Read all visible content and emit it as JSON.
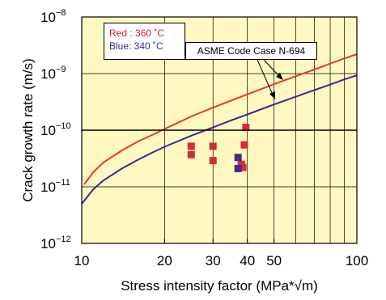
{
  "chart_data": {
    "type": "line",
    "title": "",
    "xlabel": "Stress intensity factor (MPa*√m)",
    "ylabel": "Crack growth rate (m/s)",
    "xscale": "log",
    "yscale": "log",
    "xlim": [
      10,
      100
    ],
    "ylim": [
      1e-12,
      1e-08
    ],
    "x_tick_values": [
      10,
      20,
      30,
      40,
      50,
      100
    ],
    "x_tick_labels": [
      "10",
      "20",
      "30",
      "40",
      "50",
      "100"
    ],
    "y_ticks": [
      {
        "value": 1e-12,
        "exp": "−12"
      },
      {
        "value": 1e-11,
        "exp": "−11"
      },
      {
        "value": 1e-10,
        "exp": "−10"
      },
      {
        "value": 1e-09,
        "exp": "−9"
      },
      {
        "value": 1e-08,
        "exp": "−8"
      }
    ],
    "y_tick_base": "10",
    "grid": true,
    "background_color": "#fff8c0",
    "legend": {
      "placement": "top-left",
      "entries": [
        {
          "text": "Red : 360 ˚C",
          "color": "#d42020"
        },
        {
          "text": "Blue: 340 ˚C",
          "color": "#3a2a8a"
        }
      ]
    },
    "annotation": "ASME Code Case N-694",
    "series": [
      {
        "color": "#e8372c",
        "kind": "line",
        "points": [
          [
            10.2,
            1.1e-11
          ],
          [
            11,
            1.8e-11
          ],
          [
            12,
            2.7e-11
          ],
          [
            14,
            4.4e-11
          ],
          [
            16,
            6.3e-11
          ],
          [
            18,
            8.2e-11
          ],
          [
            20,
            1.05e-10
          ],
          [
            25,
            1.75e-10
          ],
          [
            30,
            2.5e-10
          ],
          [
            35,
            3.35e-10
          ],
          [
            40,
            4.3e-10
          ],
          [
            50,
            6.5e-10
          ],
          [
            60,
            9e-10
          ],
          [
            70,
            1.18e-09
          ],
          [
            80,
            1.5e-09
          ],
          [
            90,
            1.85e-09
          ],
          [
            100,
            2.2e-09
          ]
        ]
      },
      {
        "color": "#3a2a8a",
        "kind": "line",
        "points": [
          [
            10,
            5e-12
          ],
          [
            11,
            9e-12
          ],
          [
            12,
            1.3e-11
          ],
          [
            14,
            2.1e-11
          ],
          [
            16,
            3e-11
          ],
          [
            18,
            4e-11
          ],
          [
            20,
            5.1e-11
          ],
          [
            25,
            8e-11
          ],
          [
            30,
            1.12e-10
          ],
          [
            35,
            1.5e-10
          ],
          [
            40,
            1.9e-10
          ],
          [
            50,
            2.85e-10
          ],
          [
            60,
            3.9e-10
          ],
          [
            70,
            5.1e-10
          ],
          [
            80,
            6.4e-10
          ],
          [
            90,
            7.9e-10
          ],
          [
            100,
            9.3e-10
          ]
        ]
      },
      {
        "color": "#d42a3a",
        "kind": "markers",
        "points": [
          [
            25,
            5.2e-11
          ],
          [
            25,
            3.7e-11
          ],
          [
            30,
            5.2e-11
          ],
          [
            30,
            2.9e-11
          ],
          [
            38,
            2.5e-11
          ],
          [
            38.5,
            2.2e-11
          ],
          [
            39,
            5.5e-11
          ],
          [
            39.5,
            1.12e-10
          ]
        ]
      },
      {
        "color": "#3d2f8f",
        "kind": "markers",
        "points": [
          [
            37,
            3.3e-11
          ],
          [
            37,
            2.1e-11
          ]
        ]
      }
    ]
  }
}
